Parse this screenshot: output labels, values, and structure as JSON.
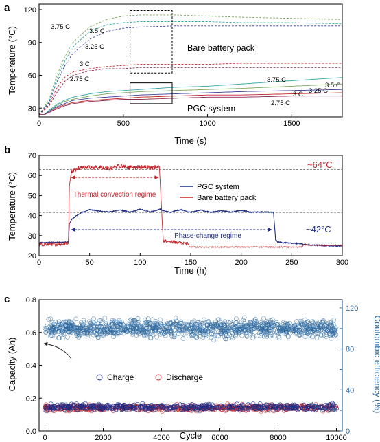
{
  "chart_data": [
    {
      "type": "line",
      "panel_label": "a",
      "xlabel": "Time (s)",
      "ylabel": "Temperature (°C)",
      "xlim": [
        0,
        1800
      ],
      "ylim": [
        22,
        125
      ],
      "xticks": [
        0,
        500,
        1000,
        1500
      ],
      "yticks": [
        30,
        60,
        90,
        120
      ],
      "group_labels": {
        "bare": "Bare battery pack",
        "pgc": "PGC system"
      },
      "series": [
        {
          "name": "3.75 C",
          "group": "bare",
          "color": "#7aa860",
          "dash": true,
          "x": [
            0,
            60,
            100,
            150,
            200,
            300,
            400,
            500,
            600,
            800,
            1000,
            1200,
            1500,
            1800
          ],
          "y": [
            24,
            38,
            58,
            76,
            90,
            104,
            111,
            114,
            115,
            115,
            114,
            113,
            112,
            111
          ]
        },
        {
          "name": "3.5 C",
          "group": "bare",
          "color": "#2aa7a0",
          "dash": true,
          "x": [
            0,
            60,
            100,
            150,
            200,
            300,
            400,
            500,
            600,
            800,
            1000,
            1200,
            1500,
            1800
          ],
          "y": [
            24,
            36,
            55,
            72,
            86,
            100,
            106,
            108,
            109,
            109,
            109,
            108,
            108,
            107
          ]
        },
        {
          "name": "3.25 C",
          "group": "bare",
          "color": "#3d3f9b",
          "dash": true,
          "x": [
            0,
            60,
            100,
            150,
            200,
            300,
            400,
            500,
            600,
            800,
            1000,
            1200,
            1500,
            1800
          ],
          "y": [
            24,
            35,
            52,
            68,
            80,
            93,
            100,
            103,
            104,
            105,
            105,
            105,
            105,
            105
          ]
        },
        {
          "name": "3 C",
          "group": "bare",
          "color": "#c1272d",
          "dash": true,
          "x": [
            0,
            60,
            100,
            150,
            200,
            300,
            400,
            500,
            600,
            800,
            1000,
            1200,
            1500,
            1800
          ],
          "y": [
            24,
            33,
            47,
            58,
            63,
            66,
            68,
            69,
            70,
            70,
            70,
            71,
            71,
            71
          ]
        },
        {
          "name": "2.75 C",
          "group": "bare",
          "color": "#8b2b4f",
          "dash": true,
          "x": [
            0,
            60,
            100,
            150,
            200,
            300,
            400,
            500,
            600,
            800,
            1000,
            1200,
            1500,
            1800
          ],
          "y": [
            24,
            32,
            43,
            54,
            60,
            64,
            66,
            66,
            67,
            67,
            67,
            67,
            67,
            67
          ]
        },
        {
          "name": "3.75 C",
          "group": "pgc",
          "color": "#2aa7a0",
          "dash": false,
          "x": [
            0,
            30,
            60,
            100,
            150,
            200,
            300,
            400,
            500,
            600,
            800,
            1000,
            1200,
            1500,
            1800
          ],
          "y": [
            24,
            24,
            28,
            33,
            37,
            40,
            43,
            45,
            46,
            47,
            49,
            50,
            52,
            55,
            58
          ]
        },
        {
          "name": "3.5 C",
          "group": "pgc",
          "color": "#7aa860",
          "dash": false,
          "x": [
            0,
            30,
            60,
            100,
            150,
            200,
            300,
            400,
            500,
            600,
            800,
            1000,
            1200,
            1500,
            1800
          ],
          "y": [
            24,
            24,
            27,
            32,
            36,
            38,
            41,
            43,
            44,
            45,
            46,
            47,
            48,
            50,
            52
          ]
        },
        {
          "name": "3.25 C",
          "group": "pgc",
          "color": "#3d3f9b",
          "dash": false,
          "x": [
            0,
            30,
            60,
            100,
            150,
            200,
            300,
            400,
            500,
            600,
            800,
            1000,
            1200,
            1500,
            1800
          ],
          "y": [
            24,
            24,
            27,
            31,
            34,
            37,
            39,
            40,
            41,
            42,
            43,
            44,
            45,
            46,
            47
          ]
        },
        {
          "name": "3 C",
          "group": "pgc",
          "color": "#c1272d",
          "dash": false,
          "x": [
            0,
            30,
            60,
            100,
            150,
            200,
            300,
            400,
            500,
            600,
            800,
            1000,
            1200,
            1500,
            1800
          ],
          "y": [
            24,
            24,
            26,
            30,
            33,
            35,
            37,
            38,
            39,
            40,
            41,
            42,
            42,
            43,
            44
          ]
        },
        {
          "name": "2.75 C",
          "group": "pgc",
          "color": "#8b2b4f",
          "dash": false,
          "x": [
            0,
            30,
            60,
            100,
            150,
            200,
            300,
            400,
            500,
            600,
            800,
            1000,
            1200,
            1500,
            1800
          ],
          "y": [
            24,
            24,
            26,
            29,
            32,
            34,
            36,
            37,
            38,
            38,
            39,
            40,
            40,
            41,
            41
          ]
        }
      ],
      "boxes": [
        {
          "style": "dashed",
          "x": [
            540,
            790
          ],
          "y": [
            62,
            119
          ]
        },
        {
          "style": "solid",
          "x": [
            540,
            790
          ],
          "y": [
            34,
            53
          ]
        }
      ]
    },
    {
      "type": "line",
      "panel_label": "b",
      "xlabel": "Time (h)",
      "ylabel": "Temperature (°C)",
      "xlim": [
        0,
        300
      ],
      "ylim": [
        20,
        70
      ],
      "xticks": [
        0,
        50,
        100,
        150,
        200,
        250,
        300
      ],
      "yticks": [
        20,
        30,
        40,
        50,
        60,
        70
      ],
      "legend": "center-right",
      "reference_lines": [
        63,
        41.5
      ],
      "series": [
        {
          "name": "PGC system",
          "color": "#1f2d86",
          "x": [
            0,
            29,
            30,
            33,
            40,
            50,
            60,
            70,
            80,
            90,
            100,
            110,
            120,
            122,
            130,
            140,
            150,
            160,
            170,
            180,
            190,
            200,
            210,
            220,
            232,
            234,
            236,
            240,
            250,
            260,
            262,
            270,
            280,
            290,
            300
          ],
          "y": [
            26.5,
            26.8,
            36,
            38.5,
            41,
            43,
            42.2,
            41.8,
            42.8,
            41.6,
            43.2,
            41.7,
            43.2,
            42.5,
            41.6,
            43,
            41.6,
            42.7,
            41.5,
            42.4,
            41.6,
            42.6,
            41.6,
            41.8,
            41.6,
            28,
            27,
            26.5,
            26.2,
            26,
            25.6,
            25.3,
            25,
            24.9,
            24.8
          ]
        },
        {
          "name": "Bare battery pack",
          "color": "#c1272d",
          "x": [
            0,
            29,
            30,
            32,
            40,
            50,
            60,
            70,
            80,
            90,
            100,
            110,
            119,
            121,
            122,
            123,
            130,
            140,
            148,
            149,
            150,
            160,
            180,
            200,
            220,
            240,
            260,
            262,
            280,
            300
          ],
          "y": [
            25.5,
            26,
            55,
            62,
            64,
            63.8,
            64.2,
            63.5,
            64.8,
            63.8,
            64.2,
            64,
            64.4,
            45,
            35,
            27.5,
            27,
            26.4,
            25.8,
            24.5,
            24.3,
            24.3,
            24.3,
            24.3,
            24.3,
            24.3,
            24.3,
            25.3,
            25.2,
            25.2
          ]
        }
      ],
      "annotations": [
        {
          "text": "~64°C",
          "color": "#c1272d"
        },
        {
          "text": "~42°C",
          "color": "#1f2d86"
        },
        {
          "text": "Thermal convection regime",
          "color": "#c1272d",
          "x": [
            32,
            118
          ],
          "y": 59
        },
        {
          "text": "Phase-change regime",
          "color": "#1f2d86",
          "x": [
            32,
            230
          ],
          "y": 33
        }
      ]
    },
    {
      "type": "scatter",
      "panel_label": "c",
      "xlabel": "Cycle",
      "ylabel": "Capacity (Ah)",
      "y2label": "Coulombic efficiency (%)",
      "xlim": [
        -200,
        10200
      ],
      "ylim": [
        0,
        0.8
      ],
      "y2lim": [
        0,
        128
      ],
      "xticks": [
        0,
        2000,
        4000,
        6000,
        8000,
        10000
      ],
      "yticks": [
        0.0,
        0.2,
        0.4,
        0.6,
        0.8
      ],
      "yticklabels": [
        "0.0",
        "0.2",
        "0.4",
        "0.6",
        "0.8"
      ],
      "y2ticks": [
        0,
        20,
        40,
        60,
        80,
        100,
        120
      ],
      "y2ticklabels": [
        "0",
        "",
        "40",
        "",
        "80",
        "",
        "120"
      ],
      "legend": "bottom-center",
      "series": [
        {
          "name": "Charge",
          "color": "#1f2d86",
          "axis": "left",
          "mean": 0.145,
          "spread": 0.025,
          "x_range": [
            0,
            10000
          ]
        },
        {
          "name": "Discharge",
          "color": "#c1272d",
          "axis": "left",
          "mean": 0.14,
          "spread": 0.025,
          "x_range": [
            0,
            10000
          ]
        },
        {
          "name": "Coulombic efficiency",
          "color": "#2e6aa0",
          "axis": "right",
          "mean": 100,
          "spread": 12,
          "x_range": [
            0,
            10000
          ]
        }
      ]
    }
  ]
}
